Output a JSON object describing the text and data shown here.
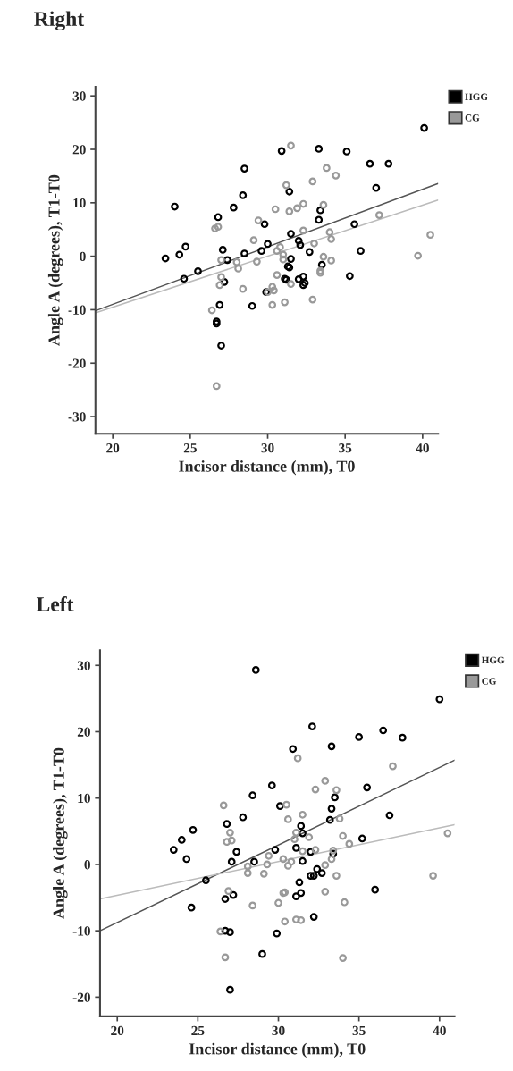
{
  "chart_data": [
    {
      "type": "scatter",
      "title": "Right",
      "xlabel": "Incisor distance (mm), T0",
      "ylabel": "Angle A (degrees), T1-T0",
      "xlim": [
        18.88,
        41.0
      ],
      "ylim": [
        -33.2,
        31.7
      ],
      "xticks": [
        20,
        25,
        30,
        35,
        40
      ],
      "yticks": [
        -30,
        -20,
        -10,
        0,
        10,
        20,
        30
      ],
      "marker": "circle",
      "legend": "top right",
      "grid": false,
      "series": [
        {
          "name": "HGG",
          "color": "#000000",
          "x": [
            23.4,
            24.0,
            24.3,
            24.7,
            24.6,
            25.5,
            26.8,
            27.1,
            27.4,
            27.2,
            26.9,
            26.7,
            26.7,
            27.0,
            27.8,
            28.4,
            28.5,
            28.5,
            29.0,
            29.6,
            29.8,
            29.9,
            30.0,
            30.9,
            31.4,
            31.5,
            31.5,
            31.3,
            31.4,
            31.1,
            31.2,
            32.0,
            32.1,
            32.0,
            32.3,
            32.3,
            32.4,
            32.7,
            33.3,
            33.4,
            33.3,
            33.5,
            35.1,
            35.6,
            36.0,
            35.3,
            36.6,
            37.8,
            37.0,
            40.1
          ],
          "values": [
            -0.4,
            9.3,
            0.3,
            1.8,
            -4.2,
            -2.8,
            7.3,
            1.2,
            -0.7,
            -4.8,
            -9.1,
            -12.2,
            -12.6,
            -16.7,
            9.1,
            11.4,
            16.4,
            0.5,
            -9.3,
            1.0,
            6.0,
            -6.7,
            2.3,
            19.7,
            12.1,
            4.2,
            -0.5,
            -1.9,
            -2.1,
            -4.2,
            -4.4,
            2.9,
            2.1,
            -4.3,
            -3.8,
            -5.4,
            -5.0,
            0.8,
            20.1,
            8.6,
            6.8,
            -1.6,
            19.6,
            6.0,
            1.0,
            -3.7,
            17.3,
            17.3,
            12.8,
            24.0
          ]
        },
        {
          "name": "CG",
          "color": "#999999",
          "x": [
            26.6,
            26.8,
            27.0,
            27.0,
            26.9,
            26.4,
            26.7,
            28.0,
            28.1,
            28.4,
            29.1,
            29.4,
            29.3,
            31.5,
            31.2,
            30.5,
            31.4,
            31.9,
            32.3,
            33.8,
            34.4,
            32.9,
            33.6,
            32.3,
            34.0,
            34.1,
            33.0,
            30.6,
            30.8,
            31.0,
            31.0,
            33.6,
            34.1,
            33.4,
            33.4,
            30.6,
            31.5,
            30.3,
            30.4,
            30.0,
            30.3,
            31.1,
            32.9,
            37.2,
            39.7,
            40.5
          ],
          "values": [
            5.2,
            5.5,
            -0.7,
            -3.9,
            -5.4,
            -10.1,
            -24.3,
            -1.1,
            -2.3,
            -6.1,
            3.0,
            6.7,
            -1.0,
            20.7,
            13.3,
            8.8,
            8.4,
            9.0,
            9.8,
            16.5,
            15.1,
            14.0,
            9.6,
            4.8,
            4.5,
            3.2,
            2.4,
            1.0,
            1.7,
            0.3,
            -0.6,
            -0.1,
            -0.8,
            -2.7,
            -3.1,
            -3.5,
            -5.2,
            -5.7,
            -6.4,
            -6.7,
            -9.1,
            -8.6,
            -8.1,
            7.7,
            0.1,
            4.0
          ]
        },
        {
          "type": "line",
          "marker": "none",
          "color": "#555555",
          "x": [
            18.88,
            41.0
          ],
          "values": [
            -10.2,
            13.6
          ]
        },
        {
          "type": "line",
          "marker": "none",
          "color": "#bbbbbb",
          "x": [
            18.88,
            41.0
          ],
          "values": [
            -10.6,
            10.5
          ]
        }
      ]
    },
    {
      "type": "scatter",
      "title": "Left",
      "xlabel": "Incisor distance (mm), T0",
      "ylabel": "Angle A (degrees), T1-T0",
      "xlim": [
        18.93,
        40.93
      ],
      "ylim": [
        -22.9,
        32.3
      ],
      "xticks": [
        20,
        25,
        30,
        35,
        40
      ],
      "yticks": [
        -20,
        -10,
        0,
        10,
        20,
        30
      ],
      "marker": "circle",
      "legend": "top right",
      "grid": false,
      "series": [
        {
          "name": "HGG",
          "color": "#000000",
          "x": [
            28.6,
            28.4,
            27.8,
            26.8,
            24.7,
            24.0,
            23.5,
            24.3,
            27.4,
            27.1,
            28.5,
            25.5,
            26.7,
            27.2,
            24.6,
            26.7,
            27.0,
            29.0,
            27.0,
            40.0,
            32.1,
            36.5,
            35.0,
            37.7,
            30.9,
            33.3,
            29.6,
            35.5,
            30.1,
            33.5,
            33.3,
            33.2,
            36.9,
            31.4,
            31.5,
            29.8,
            31.1,
            32.0,
            33.4,
            35.2,
            31.5,
            32.4,
            32.0,
            32.2,
            32.7,
            31.3,
            31.1,
            31.4,
            36.0,
            32.2,
            29.9
          ],
          "values": [
            29.3,
            10.4,
            7.1,
            6.1,
            5.2,
            3.7,
            2.2,
            0.8,
            1.9,
            0.4,
            0.4,
            -2.4,
            -5.2,
            -4.6,
            -6.5,
            -10.0,
            -10.2,
            -13.5,
            -18.9,
            24.9,
            20.8,
            20.2,
            19.2,
            19.1,
            17.4,
            17.8,
            11.9,
            11.6,
            8.8,
            10.1,
            8.4,
            6.7,
            7.4,
            5.8,
            4.7,
            2.2,
            2.5,
            1.9,
            1.6,
            3.9,
            0.5,
            -0.7,
            -1.7,
            -1.7,
            -1.3,
            -2.7,
            -4.8,
            -4.3,
            -3.8,
            -7.9,
            -10.4
          ]
        },
        {
          "name": "CG",
          "color": "#999999",
          "x": [
            26.6,
            27.0,
            26.8,
            27.1,
            28.1,
            28.1,
            29.1,
            29.4,
            29.3,
            26.9,
            28.4,
            26.4,
            26.7,
            31.2,
            37.1,
            32.9,
            32.3,
            33.6,
            30.5,
            30.6,
            31.5,
            33.8,
            31.1,
            31.0,
            31.9,
            34.0,
            34.4,
            31.5,
            32.3,
            33.4,
            33.3,
            30.3,
            30.8,
            30.6,
            32.9,
            33.6,
            32.9,
            30.3,
            30.4,
            30.0,
            34.1,
            30.4,
            31.1,
            31.4,
            39.6,
            40.5,
            34.0
          ],
          "values": [
            8.9,
            4.8,
            3.4,
            3.6,
            -0.3,
            -1.3,
            -1.4,
            1.3,
            0.0,
            -4.0,
            -6.2,
            -10.1,
            -14.0,
            16.0,
            14.8,
            12.6,
            11.3,
            11.2,
            9.0,
            6.8,
            7.5,
            6.9,
            4.8,
            3.8,
            4.1,
            4.3,
            3.1,
            2.0,
            2.2,
            2.1,
            0.8,
            0.8,
            0.4,
            -0.2,
            -0.1,
            -1.7,
            -4.1,
            -4.3,
            -4.2,
            -5.8,
            -5.7,
            -8.6,
            -8.3,
            -8.4,
            -1.7,
            4.7,
            -14.1
          ]
        },
        {
          "type": "line",
          "marker": "none",
          "color": "#555555",
          "x": [
            18.93,
            40.93
          ],
          "values": [
            -10.0,
            15.7
          ]
        },
        {
          "type": "line",
          "marker": "none",
          "color": "#bbbbbb",
          "x": [
            18.93,
            40.93
          ],
          "values": [
            -5.2,
            6.0
          ]
        }
      ]
    }
  ]
}
